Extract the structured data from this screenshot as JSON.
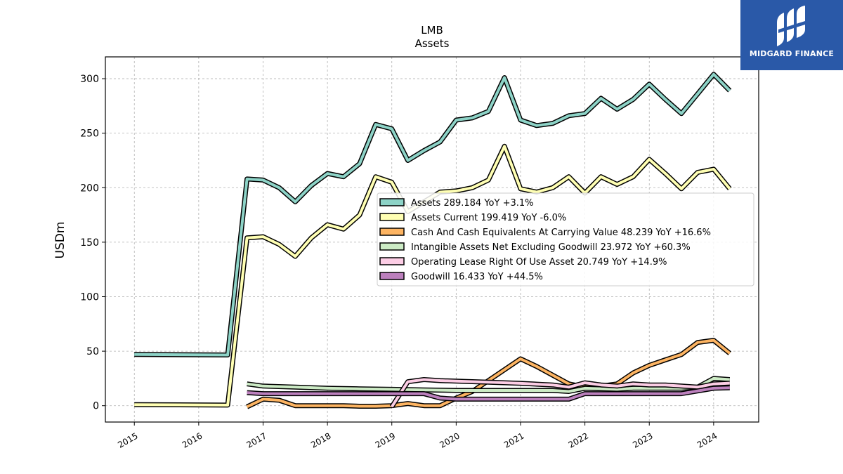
{
  "brand": {
    "name": "MIDGARD FINANCE",
    "color": "#2a59a8",
    "icon": "midgard-logo-icon"
  },
  "chart_data": {
    "type": "line",
    "title": "LMB",
    "subtitle": "Assets",
    "xlabel": "",
    "ylabel": "USDm",
    "xlim": [
      2014.55,
      2024.7
    ],
    "ylim": [
      -15,
      320
    ],
    "yticks": [
      0,
      50,
      100,
      150,
      200,
      250,
      300
    ],
    "xticks": [
      2015,
      2016,
      2017,
      2018,
      2019,
      2020,
      2021,
      2022,
      2023,
      2024
    ],
    "xtick_labels": [
      "2015",
      "2016",
      "2017",
      "2018",
      "2019",
      "2020",
      "2021",
      "2022",
      "2023",
      "2024"
    ],
    "grid": true,
    "legend_position": "center-right",
    "series": [
      {
        "name": "Assets",
        "legend": "Assets  289.184 YoY +3.1%",
        "color": "#8dd3c7",
        "points": [
          [
            2015.0,
            47
          ],
          [
            2016.45,
            46.5
          ],
          [
            2016.75,
            208
          ],
          [
            2017.0,
            207
          ],
          [
            2017.25,
            200
          ],
          [
            2017.5,
            187
          ],
          [
            2017.75,
            202
          ],
          [
            2018.0,
            213
          ],
          [
            2018.25,
            210
          ],
          [
            2018.5,
            222
          ],
          [
            2018.75,
            258
          ],
          [
            2019.0,
            254
          ],
          [
            2019.25,
            225
          ],
          [
            2019.5,
            234
          ],
          [
            2019.75,
            242
          ],
          [
            2020.0,
            262
          ],
          [
            2020.25,
            264
          ],
          [
            2020.5,
            270
          ],
          [
            2020.75,
            301
          ],
          [
            2021.0,
            262
          ],
          [
            2021.25,
            257
          ],
          [
            2021.5,
            259
          ],
          [
            2021.75,
            266
          ],
          [
            2022.0,
            268
          ],
          [
            2022.25,
            282
          ],
          [
            2022.5,
            272
          ],
          [
            2022.75,
            281
          ],
          [
            2023.0,
            295
          ],
          [
            2023.25,
            281
          ],
          [
            2023.5,
            268
          ],
          [
            2023.75,
            286
          ],
          [
            2024.0,
            304
          ],
          [
            2024.25,
            289
          ]
        ]
      },
      {
        "name": "Assets Current",
        "legend": "Assets Current  199.419 YoY -6.0%",
        "color": "#ffffb3",
        "points": [
          [
            2015.0,
            1
          ],
          [
            2016.45,
            0.5
          ],
          [
            2016.75,
            154
          ],
          [
            2017.0,
            155
          ],
          [
            2017.25,
            148
          ],
          [
            2017.5,
            137
          ],
          [
            2017.75,
            154
          ],
          [
            2018.0,
            166
          ],
          [
            2018.25,
            162
          ],
          [
            2018.5,
            175
          ],
          [
            2018.75,
            210
          ],
          [
            2019.0,
            205
          ],
          [
            2019.25,
            178
          ],
          [
            2019.5,
            187
          ],
          [
            2019.75,
            196
          ],
          [
            2020.0,
            197
          ],
          [
            2020.25,
            200
          ],
          [
            2020.5,
            207
          ],
          [
            2020.75,
            238
          ],
          [
            2021.0,
            199
          ],
          [
            2021.25,
            196
          ],
          [
            2021.5,
            200
          ],
          [
            2021.75,
            210
          ],
          [
            2022.0,
            195
          ],
          [
            2022.25,
            210
          ],
          [
            2022.5,
            203
          ],
          [
            2022.75,
            210
          ],
          [
            2023.0,
            226
          ],
          [
            2023.25,
            213
          ],
          [
            2023.5,
            199
          ],
          [
            2023.75,
            214
          ],
          [
            2024.0,
            217
          ],
          [
            2024.25,
            199
          ]
        ]
      },
      {
        "name": "Cash And Cash Equivalents At Carrying Value",
        "legend": "Cash And Cash Equivalents At Carrying Value  48.239 YoY +16.6%",
        "color": "#fdb462",
        "points": [
          [
            2016.75,
            -1
          ],
          [
            2017.0,
            6
          ],
          [
            2017.25,
            5
          ],
          [
            2017.5,
            0
          ],
          [
            2017.75,
            0
          ],
          [
            2018.0,
            0
          ],
          [
            2018.25,
            0
          ],
          [
            2018.5,
            -0.5
          ],
          [
            2018.75,
            -0.5
          ],
          [
            2019.0,
            0
          ],
          [
            2019.25,
            2
          ],
          [
            2019.5,
            0
          ],
          [
            2019.75,
            0
          ],
          [
            2020.0,
            7
          ],
          [
            2020.25,
            13
          ],
          [
            2020.5,
            23
          ],
          [
            2020.75,
            33
          ],
          [
            2021.0,
            43
          ],
          [
            2021.25,
            36
          ],
          [
            2021.5,
            28
          ],
          [
            2021.75,
            20
          ],
          [
            2022.0,
            17
          ],
          [
            2022.25,
            18
          ],
          [
            2022.5,
            20
          ],
          [
            2022.75,
            30
          ],
          [
            2023.0,
            37
          ],
          [
            2023.25,
            42
          ],
          [
            2023.5,
            47
          ],
          [
            2023.75,
            58
          ],
          [
            2024.0,
            60
          ],
          [
            2024.25,
            48
          ]
        ]
      },
      {
        "name": "Intangible Assets Net Excluding Goodwill",
        "legend": "Intangible Assets Net Excluding Goodwill  23.972 YoY +60.3%",
        "color": "#ccebc5",
        "points": [
          [
            2016.75,
            20
          ],
          [
            2017.0,
            18
          ],
          [
            2017.5,
            17
          ],
          [
            2018.0,
            16
          ],
          [
            2018.5,
            15.5
          ],
          [
            2019.0,
            15
          ],
          [
            2019.5,
            14.5
          ],
          [
            2020.0,
            14
          ],
          [
            2020.5,
            14
          ],
          [
            2021.0,
            14
          ],
          [
            2021.5,
            14
          ],
          [
            2021.75,
            13
          ],
          [
            2022.0,
            16
          ],
          [
            2022.5,
            15
          ],
          [
            2022.75,
            16
          ],
          [
            2023.0,
            16
          ],
          [
            2023.5,
            16
          ],
          [
            2023.75,
            17
          ],
          [
            2024.0,
            25
          ],
          [
            2024.25,
            24
          ]
        ]
      },
      {
        "name": "Operating Lease Right Of Use Asset",
        "legend": "Operating Lease Right Of Use Asset  20.749 YoY +14.9%",
        "color": "#fccde5",
        "points": [
          [
            2019.0,
            -1
          ],
          [
            2019.25,
            22
          ],
          [
            2019.5,
            24
          ],
          [
            2019.75,
            23
          ],
          [
            2020.0,
            22.5
          ],
          [
            2020.5,
            21.5
          ],
          [
            2021.0,
            20.5
          ],
          [
            2021.5,
            19
          ],
          [
            2021.75,
            17
          ],
          [
            2022.0,
            21
          ],
          [
            2022.25,
            19
          ],
          [
            2022.5,
            18
          ],
          [
            2022.75,
            20
          ],
          [
            2023.0,
            19
          ],
          [
            2023.25,
            19
          ],
          [
            2023.5,
            18
          ],
          [
            2023.75,
            17
          ],
          [
            2024.0,
            20
          ],
          [
            2024.25,
            20.7
          ]
        ]
      },
      {
        "name": "Goodwill",
        "legend": "Goodwill  16.433 YoY +44.5%",
        "color": "#bc80bd",
        "points": [
          [
            2016.75,
            12
          ],
          [
            2017.0,
            11
          ],
          [
            2017.5,
            11
          ],
          [
            2018.0,
            11
          ],
          [
            2018.5,
            11
          ],
          [
            2019.0,
            11
          ],
          [
            2019.5,
            11
          ],
          [
            2019.75,
            7
          ],
          [
            2020.0,
            6
          ],
          [
            2020.5,
            6
          ],
          [
            2021.0,
            6
          ],
          [
            2021.5,
            6
          ],
          [
            2021.75,
            6
          ],
          [
            2022.0,
            11
          ],
          [
            2022.5,
            11
          ],
          [
            2023.0,
            11
          ],
          [
            2023.5,
            11
          ],
          [
            2024.0,
            16
          ],
          [
            2024.25,
            16.4
          ]
        ]
      }
    ]
  }
}
